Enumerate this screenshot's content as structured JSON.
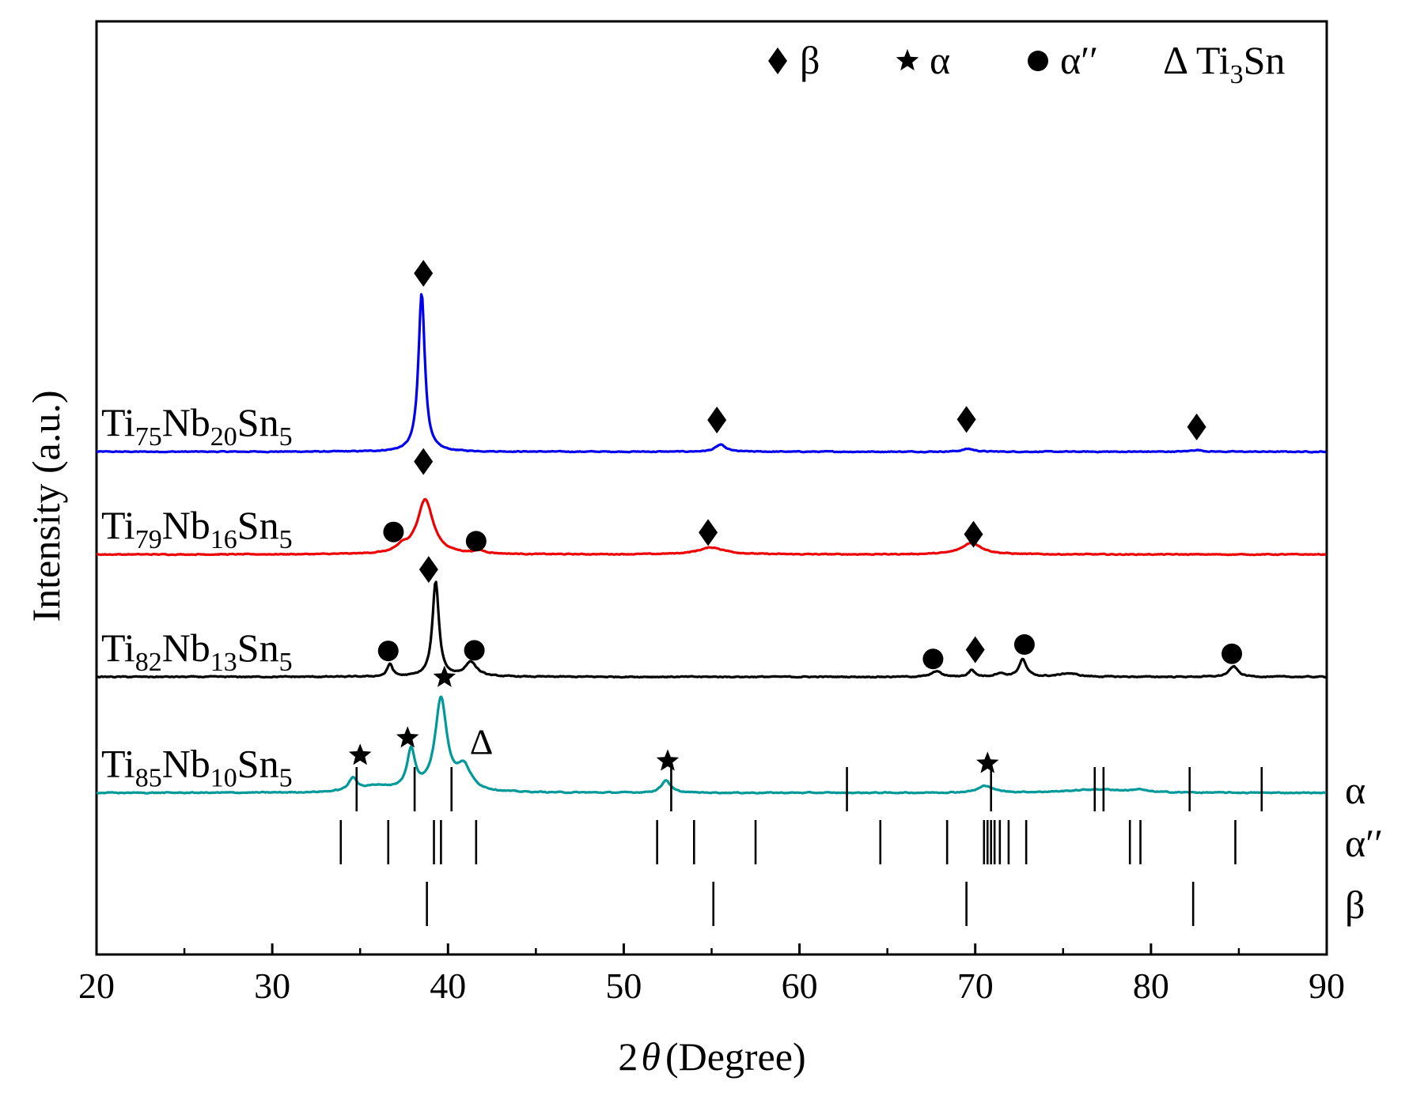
{
  "chart_data": {
    "type": "line",
    "title": "",
    "xlabel": "2θ (Degree)",
    "xlabel_prefix": "2",
    "xlabel_theta": "θ",
    "xlabel_suffix": "(Degree)",
    "ylabel": "Intensity (a.u.)",
    "xlim": [
      20,
      90
    ],
    "xticks": [
      20,
      30,
      40,
      50,
      60,
      70,
      80,
      90
    ],
    "legend": {
      "placement": "top-right",
      "items": [
        {
          "marker": "diamond",
          "label": "β"
        },
        {
          "marker": "star",
          "label": "α"
        },
        {
          "marker": "circle",
          "label": "α′′"
        },
        {
          "marker": "delta",
          "symbol": "Δ",
          "label": "Ti",
          "sub": "3",
          "suffix": "Sn"
        }
      ]
    },
    "series": [
      {
        "name": "Ti75Nb20Sn5",
        "color": "#0000ee",
        "baseline": 0.86,
        "noise": 0.012,
        "label_parts": [
          [
            "Ti",
            ""
          ],
          [
            "75",
            "sub"
          ],
          [
            "Nb",
            ""
          ],
          [
            "20",
            "sub"
          ],
          [
            "Sn",
            ""
          ],
          [
            "5",
            "sub"
          ]
        ],
        "peaks": [
          [
            38.5,
            2.75,
            0.22
          ],
          [
            55.5,
            0.12,
            0.35
          ],
          [
            69.6,
            0.05,
            0.4
          ],
          [
            82.6,
            0.03,
            0.4
          ]
        ],
        "markers": [
          {
            "type": "diamond",
            "x": 38.6,
            "y": 3.95
          },
          {
            "type": "diamond",
            "x": 55.3,
            "y": 1.41
          },
          {
            "type": "diamond",
            "x": 69.5,
            "y": 1.42
          },
          {
            "type": "diamond",
            "x": 82.6,
            "y": 1.29
          }
        ]
      },
      {
        "name": "Ti79Nb16Sn5",
        "color": "#ee0000",
        "baseline": -0.92,
        "noise": 0.012,
        "label_parts": [
          [
            "Ti",
            ""
          ],
          [
            "79",
            "sub"
          ],
          [
            "Nb",
            ""
          ],
          [
            "16",
            "sub"
          ],
          [
            "Sn",
            ""
          ],
          [
            "5",
            "sub"
          ]
        ],
        "peaks": [
          [
            38.7,
            0.95,
            0.55
          ],
          [
            37.4,
            0.1,
            0.35
          ],
          [
            41.8,
            0.05,
            0.4
          ],
          [
            55.0,
            0.12,
            0.9
          ],
          [
            69.8,
            0.2,
            0.7
          ]
        ],
        "markers": [
          {
            "type": "diamond",
            "x": 38.6,
            "y": 0.69
          },
          {
            "type": "circle",
            "x": 36.9,
            "y": -0.53
          },
          {
            "type": "circle",
            "x": 41.6,
            "y": -0.69
          },
          {
            "type": "diamond",
            "x": 54.8,
            "y": -0.54
          },
          {
            "type": "diamond",
            "x": 69.9,
            "y": -0.57
          }
        ]
      },
      {
        "name": "Ti82Nb13Sn5",
        "color": "#000000",
        "baseline": -3.04,
        "noise": 0.014,
        "label_parts": [
          [
            "Ti",
            ""
          ],
          [
            "82",
            "sub"
          ],
          [
            "Nb",
            ""
          ],
          [
            "13",
            "sub"
          ],
          [
            "Sn",
            ""
          ],
          [
            "5",
            "sub"
          ]
        ],
        "peaks": [
          [
            39.3,
            1.65,
            0.22
          ],
          [
            36.7,
            0.22,
            0.18
          ],
          [
            41.3,
            0.25,
            0.4
          ],
          [
            67.8,
            0.1,
            0.3
          ],
          [
            69.8,
            0.12,
            0.2
          ],
          [
            71.4,
            0.06,
            0.3
          ],
          [
            72.7,
            0.3,
            0.25
          ],
          [
            75.3,
            0.06,
            0.6
          ],
          [
            84.7,
            0.18,
            0.3
          ]
        ],
        "markers": [
          {
            "type": "diamond",
            "x": 38.9,
            "y": -1.18
          },
          {
            "type": "circle",
            "x": 36.6,
            "y": -2.59
          },
          {
            "type": "circle",
            "x": 41.5,
            "y": -2.58
          },
          {
            "type": "circle",
            "x": 67.6,
            "y": -2.73
          },
          {
            "type": "diamond",
            "x": 70.0,
            "y": -2.57
          },
          {
            "type": "circle",
            "x": 72.8,
            "y": -2.48
          },
          {
            "type": "circle",
            "x": 84.6,
            "y": -2.64
          }
        ]
      },
      {
        "name": "Ti85Nb10Sn5",
        "color": "#009999",
        "baseline": -5.05,
        "noise": 0.014,
        "label_parts": [
          [
            "Ti",
            ""
          ],
          [
            "85",
            "sub"
          ],
          [
            "Nb",
            ""
          ],
          [
            "10",
            "sub"
          ],
          [
            "Sn",
            ""
          ],
          [
            "5",
            "sub"
          ]
        ],
        "peaks": [
          [
            34.6,
            0.22,
            0.3
          ],
          [
            36.0,
            0.1,
            1.0
          ],
          [
            37.9,
            0.68,
            0.28
          ],
          [
            39.6,
            1.6,
            0.4
          ],
          [
            40.9,
            0.4,
            0.5
          ],
          [
            52.4,
            0.22,
            0.3
          ],
          [
            70.6,
            0.12,
            0.5
          ],
          [
            77.0,
            0.06,
            2.0
          ],
          [
            79.3,
            0.04,
            0.4
          ]
        ],
        "markers": [
          {
            "type": "star",
            "x": 39.8,
            "y": -3.05
          },
          {
            "type": "star",
            "x": 35.0,
            "y": -4.4
          },
          {
            "type": "star",
            "x": 37.7,
            "y": -4.1
          },
          {
            "type": "delta",
            "x": 41.9,
            "y": -4.16,
            "symbol": "Δ"
          },
          {
            "type": "star",
            "x": 52.5,
            "y": -4.5
          },
          {
            "type": "star",
            "x": 70.7,
            "y": -4.54
          }
        ]
      }
    ],
    "reference_lines": [
      {
        "phase": "α",
        "label": "α",
        "positions": [
          34.8,
          38.1,
          40.2,
          52.7,
          62.7,
          70.9,
          76.8,
          77.3,
          82.2,
          86.3
        ]
      },
      {
        "phase": "α′′",
        "label": "α′′",
        "positions": [
          33.9,
          36.6,
          39.2,
          39.6,
          41.6,
          51.9,
          54.0,
          57.5,
          64.6,
          68.4,
          70.5,
          70.7,
          70.9,
          71.1,
          71.4,
          71.9,
          72.9,
          78.8,
          79.4,
          84.8
        ]
      },
      {
        "phase": "β",
        "label": "β",
        "positions": [
          38.8,
          55.1,
          69.5,
          82.4
        ]
      }
    ]
  }
}
